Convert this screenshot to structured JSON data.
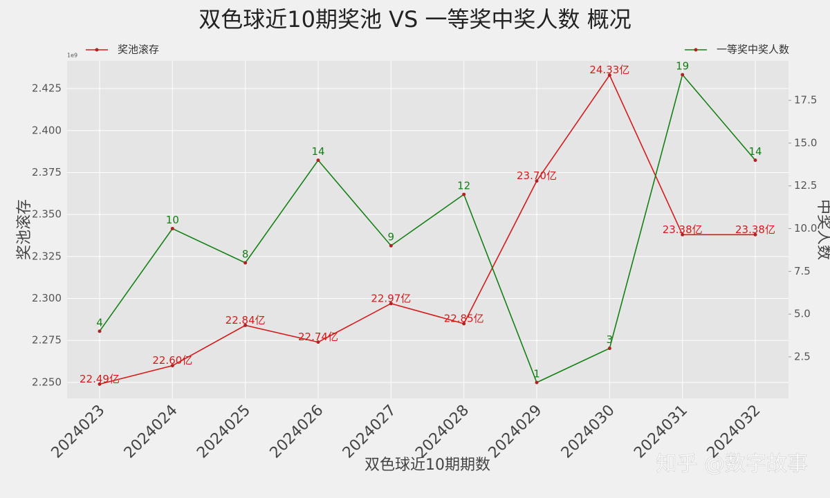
{
  "chart_data": {
    "type": "line",
    "title": "双色球近10期奖池 VS 一等奖中奖人数 概况",
    "x_label": "双色球近10期期数",
    "y_label": "奖池滚存",
    "y2_label": "中奖人数",
    "y_offset_label": "1e9",
    "categories": [
      "2024023",
      "2024024",
      "2024025",
      "2024026",
      "2024027",
      "2024028",
      "2024029",
      "2024030",
      "2024031",
      "2024032"
    ],
    "series": [
      {
        "name": "奖池滚存",
        "color": "#d61a1a",
        "axis": "y",
        "legend_loc": "upper left",
        "values": [
          2.249,
          2.26,
          2.284,
          2.274,
          2.297,
          2.285,
          2.37,
          2.433,
          2.338,
          2.338
        ],
        "value_labels": [
          "22.49亿",
          "22.60亿",
          "22.84亿",
          "22.74亿",
          "22.97亿",
          "22.85亿",
          "23.70亿",
          "24.33亿",
          "23.38亿",
          "23.38亿"
        ]
      },
      {
        "name": "一等奖中奖人数",
        "color": "#138013",
        "axis": "y2",
        "legend_loc": "upper right",
        "values": [
          4,
          10,
          8,
          14,
          9,
          12,
          1,
          3,
          19,
          14
        ]
      }
    ],
    "ylim": [
      2.2405,
      2.4415
    ],
    "yticks": [
      {
        "value": 2.25,
        "label": "2.250"
      },
      2.275,
      {
        "value": 2.3,
        "label": "2.300"
      },
      2.325,
      {
        "value": 2.35,
        "label": "2.350"
      },
      2.375,
      {
        "value": 2.4,
        "label": "2.400"
      },
      2.425
    ],
    "y2lim": [
      0.07,
      19.81
    ],
    "y2ticks": [
      2.5,
      {
        "value": 5,
        "label": "5.0"
      },
      7.5,
      {
        "value": 10,
        "label": "10.0"
      },
      12.5,
      {
        "value": 15,
        "label": "15.0"
      },
      17.5
    ],
    "grid": true,
    "watermark": "知乎 @数字故事"
  }
}
